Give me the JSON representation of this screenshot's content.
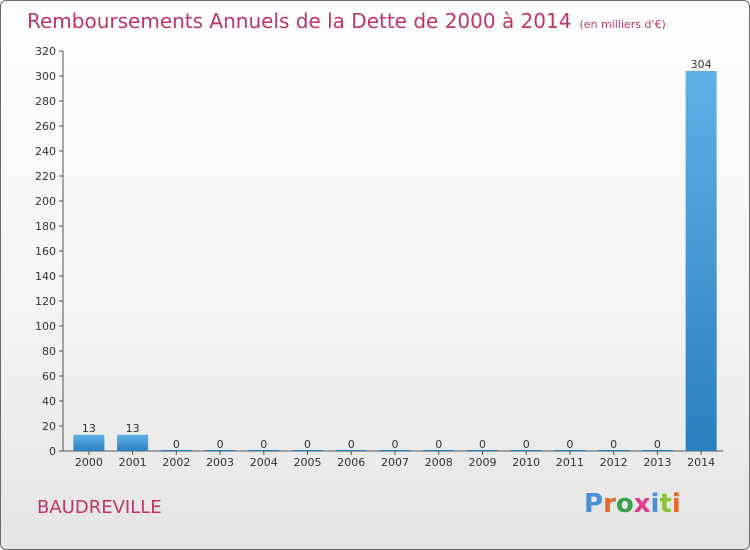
{
  "header": {
    "title": "Remboursements Annuels de la Dette de 2000 à 2014",
    "subtitle": "(en milliers d'€)"
  },
  "footer": {
    "commune": "BAUDREVILLE",
    "logo_text": "Proxiti"
  },
  "colors": {
    "title": "#c0336b",
    "bar_light": "#5fb0e6",
    "bar_dark": "#2a7fc0",
    "logo": [
      "#4a8fd4",
      "#e06a2a",
      "#3ba04a",
      "#e03a8a",
      "#4a8fd4",
      "#8bc43a",
      "#e06a2a"
    ]
  },
  "chart_data": {
    "type": "bar",
    "categories": [
      "2000",
      "2001",
      "2002",
      "2003",
      "2004",
      "2005",
      "2006",
      "2007",
      "2008",
      "2009",
      "2010",
      "2011",
      "2012",
      "2013",
      "2014"
    ],
    "values": [
      13,
      13,
      0,
      0,
      0,
      0,
      0,
      0,
      0,
      0,
      0,
      0,
      0,
      0,
      304
    ],
    "title": "Remboursements Annuels de la Dette de 2000 à 2014",
    "xlabel": "",
    "ylabel": "",
    "ylim": [
      0,
      320
    ],
    "yticks": [
      0,
      20,
      40,
      60,
      80,
      100,
      120,
      140,
      160,
      180,
      200,
      220,
      240,
      260,
      280,
      300,
      320
    ],
    "grid": false,
    "legend": "none"
  }
}
